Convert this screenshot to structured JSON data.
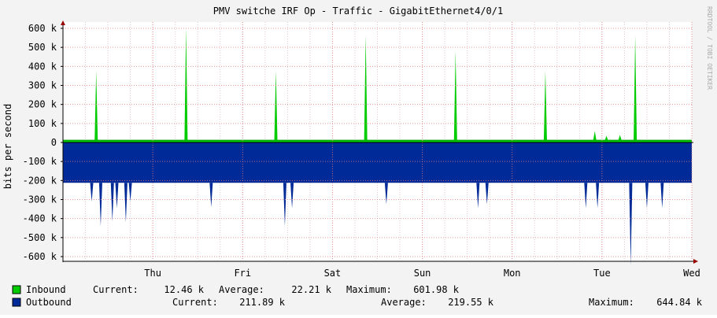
{
  "chart_data": {
    "type": "area",
    "title": "PMV switche IRF Op - Traffic - GigabitEthernet4/0/1",
    "ylabel": "bits per second",
    "watermark": "RRDTOOL / TOBI OETIKER",
    "ylim": [
      -650000,
      650000
    ],
    "xlim": [
      0,
      7
    ],
    "grid": true,
    "y_ticks": [
      {
        "value": 600000,
        "label": "600 k"
      },
      {
        "value": 500000,
        "label": "500 k"
      },
      {
        "value": 400000,
        "label": "400 k"
      },
      {
        "value": 300000,
        "label": "300 k"
      },
      {
        "value": 200000,
        "label": "200 k"
      },
      {
        "value": 100000,
        "label": "100 k"
      },
      {
        "value": 0,
        "label": "0"
      },
      {
        "value": -100000,
        "label": "-100 k"
      },
      {
        "value": -200000,
        "label": "-200 k"
      },
      {
        "value": -300000,
        "label": "-300 k"
      },
      {
        "value": -400000,
        "label": "-400 k"
      },
      {
        "value": -500000,
        "label": "-500 k"
      },
      {
        "value": -600000,
        "label": "-600 k"
      }
    ],
    "x_ticks": [
      {
        "value": 1,
        "label": "Thu"
      },
      {
        "value": 2,
        "label": "Fri"
      },
      {
        "value": 3,
        "label": "Sat"
      },
      {
        "value": 4,
        "label": "Sun"
      },
      {
        "value": 5,
        "label": "Mon"
      },
      {
        "value": 6,
        "label": "Tue"
      },
      {
        "value": 7,
        "label": "Wed"
      }
    ],
    "series": [
      {
        "name": "Inbound",
        "color": "#00cc00",
        "baseline": 12000,
        "spikes": [
          {
            "x": 0.37,
            "y": 375000
          },
          {
            "x": 1.37,
            "y": 601980
          },
          {
            "x": 2.37,
            "y": 375000
          },
          {
            "x": 3.37,
            "y": 562000
          },
          {
            "x": 4.37,
            "y": 480000
          },
          {
            "x": 5.37,
            "y": 375000
          },
          {
            "x": 5.92,
            "y": 60000
          },
          {
            "x": 6.05,
            "y": 35000
          },
          {
            "x": 6.2,
            "y": 40000
          },
          {
            "x": 6.37,
            "y": 562000
          }
        ],
        "stats": {
          "current_label": "Current:",
          "current": "12.46 k",
          "average_label": "Average:",
          "average": "22.21 k",
          "maximum_label": "Maximum:",
          "maximum": "601.98 k"
        }
      },
      {
        "name": "Outbound",
        "color": "#002a97",
        "baseline": -212000,
        "spikes": [
          {
            "x": 0.32,
            "y": -310000
          },
          {
            "x": 0.42,
            "y": -440000
          },
          {
            "x": 0.55,
            "y": -415000
          },
          {
            "x": 0.6,
            "y": -345000
          },
          {
            "x": 0.7,
            "y": -420000
          },
          {
            "x": 0.75,
            "y": -310000
          },
          {
            "x": 1.65,
            "y": -340000
          },
          {
            "x": 2.47,
            "y": -440000
          },
          {
            "x": 2.55,
            "y": -345000
          },
          {
            "x": 3.6,
            "y": -325000
          },
          {
            "x": 4.62,
            "y": -345000
          },
          {
            "x": 4.72,
            "y": -325000
          },
          {
            "x": 5.82,
            "y": -345000
          },
          {
            "x": 5.95,
            "y": -345000
          },
          {
            "x": 6.32,
            "y": -644840
          },
          {
            "x": 6.5,
            "y": -345000
          },
          {
            "x": 6.67,
            "y": -345000
          }
        ],
        "stats": {
          "current_label": "Current:",
          "current": "211.89 k",
          "average_label": "Average:",
          "average": "219.55 k",
          "maximum_label": "Maximum:",
          "maximum": "644.84 k"
        }
      }
    ]
  }
}
